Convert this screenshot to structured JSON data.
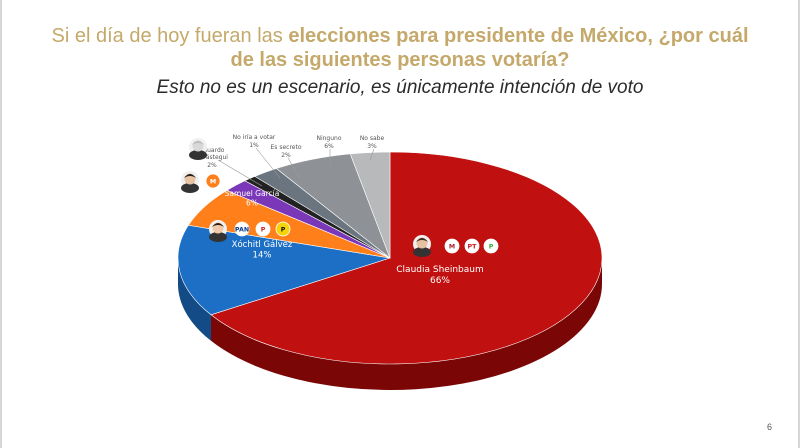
{
  "header": {
    "title_plain": "Si el día de hoy fueran las ",
    "title_bold": "elecciones para presidente de México, ¿por cuál de las siguientes personas votaría?",
    "subtitle": "Esto no es un escenario, es únicamente intención de voto"
  },
  "footer": {
    "page_number": "6"
  },
  "chart_data": {
    "type": "pie",
    "slices": [
      {
        "name": "Claudia Sheinbaum",
        "value": 66,
        "label": "66%",
        "color": "#c0100f",
        "side": "#7a0606",
        "party_logos": [
          "MORENA",
          "PT",
          "PVEM"
        ]
      },
      {
        "name": "Xóchitl Gálvez",
        "value": 14,
        "label": "14%",
        "color": "#1c6fc4",
        "side": "#124b86",
        "party_logos": [
          "PAN",
          "PRI",
          "PRD"
        ]
      },
      {
        "name": "Samuel García",
        "value": 6,
        "label": "6%",
        "color": "#ff7f1a",
        "side": "#b45710",
        "party_logos": [
          "MC"
        ]
      },
      {
        "name": "Eduardo Verástegui",
        "value": 2,
        "label": "2%",
        "color": "#7a37b8",
        "side": "#4e2276"
      },
      {
        "name": "No iría a votar",
        "value": 1,
        "label": "1%",
        "color": "#222222",
        "side": "#0d0d0d"
      },
      {
        "name": "Es secreto",
        "value": 2,
        "label": "2%",
        "color": "#6a7580",
        "side": "#444c54"
      },
      {
        "name": "Ninguno",
        "value": 6,
        "label": "6%",
        "color": "#8e9296",
        "side": "#5e6266"
      },
      {
        "name": "No sabe",
        "value": 3,
        "label": "3%",
        "color": "#b7b9bb",
        "side": "#7e8082"
      }
    ]
  }
}
